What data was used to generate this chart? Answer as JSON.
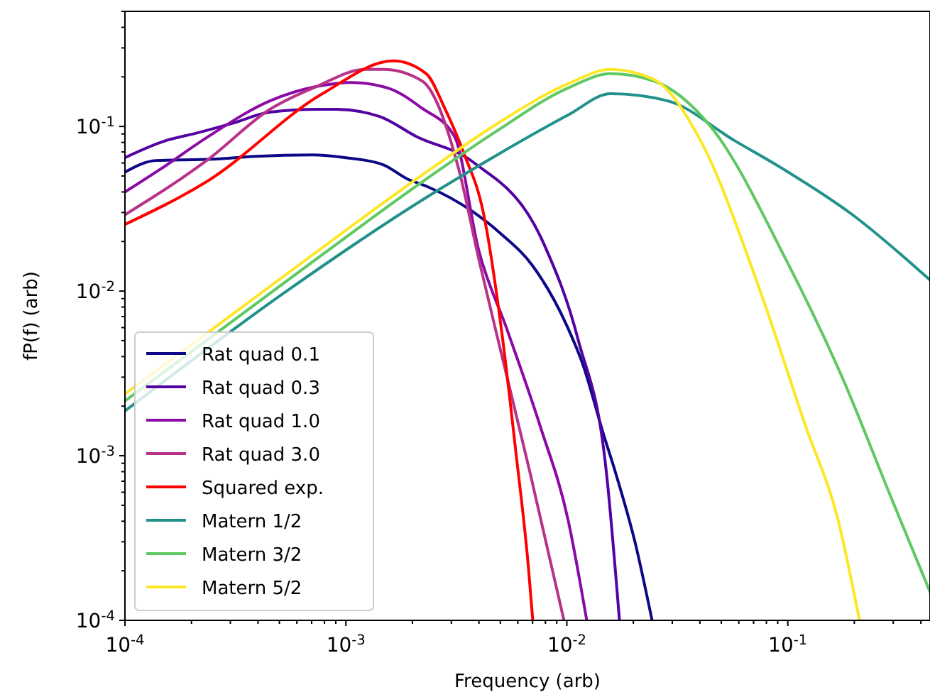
{
  "chart_data": {
    "type": "line",
    "xlabel": "Frequency (arb)",
    "ylabel": "fP(f) (arb)",
    "log": "xy",
    "legend": "lower left",
    "line_style": "solid",
    "marker": "none",
    "grid": false,
    "xlim": [
      0.0001,
      0.44
    ],
    "ylim": [
      0.0001,
      0.5
    ],
    "xticks": [
      {
        "value": 0.0001,
        "label": "10$^{-4}$"
      },
      {
        "value": 0.0002,
        "label": null
      },
      {
        "value": 0.0003,
        "label": null
      },
      {
        "value": 0.0004,
        "label": null
      },
      {
        "value": 0.0005,
        "label": null
      },
      {
        "value": 0.0006,
        "label": null
      },
      {
        "value": 0.0007,
        "label": null
      },
      {
        "value": 0.0008,
        "label": null
      },
      {
        "value": 0.0009,
        "label": null
      },
      {
        "value": 0.001,
        "label": "10$^{-3}$"
      },
      {
        "value": 0.002,
        "label": null
      },
      {
        "value": 0.003,
        "label": null
      },
      {
        "value": 0.004,
        "label": null
      },
      {
        "value": 0.005,
        "label": null
      },
      {
        "value": 0.006,
        "label": null
      },
      {
        "value": 0.007,
        "label": null
      },
      {
        "value": 0.008,
        "label": null
      },
      {
        "value": 0.009,
        "label": null
      },
      {
        "value": 0.01,
        "label": "10$^{-2}$"
      },
      {
        "value": 0.02,
        "label": null
      },
      {
        "value": 0.03,
        "label": null
      },
      {
        "value": 0.04,
        "label": null
      },
      {
        "value": 0.05,
        "label": null
      },
      {
        "value": 0.06,
        "label": null
      },
      {
        "value": 0.07,
        "label": null
      },
      {
        "value": 0.08,
        "label": null
      },
      {
        "value": 0.09,
        "label": null
      },
      {
        "value": 0.1,
        "label": "10$^{-1}$"
      },
      {
        "value": 0.2,
        "label": null
      },
      {
        "value": 0.3,
        "label": null
      },
      {
        "value": 0.4,
        "label": null
      }
    ],
    "yticks": [
      {
        "value": 0.0001,
        "label": "10$^{-4}$"
      },
      {
        "value": 0.0002,
        "label": null
      },
      {
        "value": 0.0003,
        "label": null
      },
      {
        "value": 0.0004,
        "label": null
      },
      {
        "value": 0.0005,
        "label": null
      },
      {
        "value": 0.0006,
        "label": null
      },
      {
        "value": 0.0007,
        "label": null
      },
      {
        "value": 0.0008,
        "label": null
      },
      {
        "value": 0.0009,
        "label": null
      },
      {
        "value": 0.001,
        "label": "10$^{-3}$"
      },
      {
        "value": 0.002,
        "label": null
      },
      {
        "value": 0.003,
        "label": null
      },
      {
        "value": 0.004,
        "label": null
      },
      {
        "value": 0.005,
        "label": null
      },
      {
        "value": 0.006,
        "label": null
      },
      {
        "value": 0.007,
        "label": null
      },
      {
        "value": 0.008,
        "label": null
      },
      {
        "value": 0.009,
        "label": null
      },
      {
        "value": 0.01,
        "label": "10$^{-2}$"
      },
      {
        "value": 0.02,
        "label": null
      },
      {
        "value": 0.03,
        "label": null
      },
      {
        "value": 0.04,
        "label": null
      },
      {
        "value": 0.05,
        "label": null
      },
      {
        "value": 0.06,
        "label": null
      },
      {
        "value": 0.07,
        "label": null
      },
      {
        "value": 0.08,
        "label": null
      },
      {
        "value": 0.09,
        "label": null
      },
      {
        "value": 0.1,
        "label": "10$^{-1}$"
      },
      {
        "value": 0.2,
        "label": null
      },
      {
        "value": 0.3,
        "label": null
      },
      {
        "value": 0.4,
        "label": null
      },
      {
        "value": 0.5,
        "label": null
      }
    ],
    "series": [
      {
        "name": "Rat quad 0.1",
        "color": "#0d0887",
        "x": [
          0.0001,
          0.000138,
          0.000251,
          0.000391,
          0.000706,
          0.001,
          0.00148,
          0.0019,
          0.00231,
          0.00376,
          0.00499,
          0.00701,
          0.01,
          0.0118,
          0.0147,
          0.0166,
          0.0204,
          0.0243
        ],
        "values": [
          0.0528,
          0.0621,
          0.0633,
          0.0659,
          0.0672,
          0.0646,
          0.0584,
          0.0479,
          0.0434,
          0.0303,
          0.0225,
          0.0142,
          0.00616,
          0.0036,
          0.00133,
          0.00079,
          0.000294,
          0.0001
        ]
      },
      {
        "name": "Rat quad 0.3",
        "color": "#5302a3",
        "x": [
          0.0001,
          0.000153,
          0.000207,
          0.000303,
          0.000453,
          0.000738,
          0.000908,
          0.00142,
          0.00208,
          0.00376,
          0.00789,
          0.01125,
          0.0151,
          0.0173
        ],
        "values": [
          0.0646,
          0.082,
          0.0905,
          0.104,
          0.122,
          0.127,
          0.127,
          0.115,
          0.087,
          0.0608,
          0.0192,
          0.00506,
          0.00079,
          0.0001
        ]
      },
      {
        "name": "Rat quad 1.0",
        "color": "#8b0aa5",
        "x": [
          0.0001,
          0.000145,
          0.000239,
          0.000453,
          0.000738,
          0.00105,
          0.00155,
          0.00221,
          0.0031,
          0.00399,
          0.00537,
          0.00755,
          0.01014,
          0.0123
        ],
        "values": [
          0.04,
          0.0551,
          0.087,
          0.143,
          0.175,
          0.185,
          0.171,
          0.129,
          0.087,
          0.0177,
          0.0058,
          0.00153,
          0.000404,
          0.0001
        ]
      },
      {
        "name": "Rat quad 3.0",
        "color": "#b83289",
        "x": [
          0.0001,
          0.000239,
          0.000453,
          0.000738,
          0.00122,
          0.00148,
          0.00221,
          0.00324,
          0.00399,
          0.00506,
          0.00681,
          0.0097
        ],
        "values": [
          0.0291,
          0.0633,
          0.127,
          0.175,
          0.222,
          0.222,
          0.189,
          0.0551,
          0.0157,
          0.00414,
          0.00079,
          0.0001
        ]
      },
      {
        "name": "Squared exp.",
        "color": "#ff0000",
        "x": [
          0.0001,
          0.000239,
          0.000783,
          0.00164,
          0.00231,
          0.0028,
          0.00344,
          0.00418,
          0.00506,
          0.00586,
          0.0067,
          0.00701
        ],
        "values": [
          0.0254,
          0.047,
          0.158,
          0.25,
          0.209,
          0.129,
          0.0672,
          0.0303,
          0.0058,
          0.00109,
          0.000209,
          0.0001
        ]
      },
      {
        "name": "Matern 1/2",
        "color": "#21918c",
        "x": [
          0.0001,
          0.000525,
          0.00231,
          0.00484,
          0.0101,
          0.0158,
          0.0286,
          0.0574,
          0.0977,
          0.196,
          0.44
        ],
        "values": [
          0.00187,
          0.00975,
          0.037,
          0.0672,
          0.117,
          0.158,
          0.143,
          0.082,
          0.054,
          0.0291,
          0.01167
        ]
      },
      {
        "name": "Matern 3/2",
        "color": "#5ec962",
        "x": [
          0.0001,
          0.000525,
          0.00231,
          0.00484,
          0.0101,
          0.0158,
          0.0247,
          0.0447,
          0.0977,
          0.177,
          0.292,
          0.44
        ],
        "values": [
          0.00215,
          0.0112,
          0.0479,
          0.0942,
          0.171,
          0.209,
          0.189,
          0.1,
          0.0157,
          0.00295,
          0.000566,
          0.000149
        ]
      },
      {
        "name": "Matern 5/2",
        "color": "#fde725",
        "x": [
          0.0001,
          0.000525,
          0.00231,
          0.00484,
          0.0101,
          0.0158,
          0.0247,
          0.0403,
          0.0728,
          0.12,
          0.169,
          0.211
        ],
        "values": [
          0.00237,
          0.01236,
          0.0528,
          0.104,
          0.1815,
          0.222,
          0.193,
          0.082,
          0.0112,
          0.00153,
          0.000404,
          0.0001
        ]
      }
    ]
  }
}
